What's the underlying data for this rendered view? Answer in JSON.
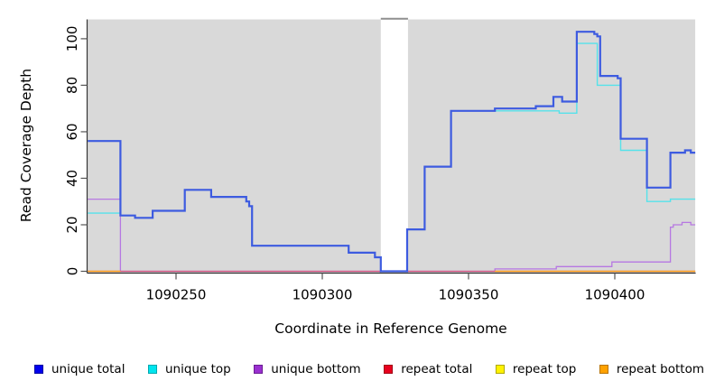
{
  "chart_data": {
    "type": "line",
    "subtype": "step-after-coverage-plot",
    "title": "",
    "xlabel": "Coordinate in Reference Genome",
    "ylabel": "Read Coverage Depth",
    "xlim": [
      1090219.8,
      1090427.5
    ],
    "ylim": [
      0,
      108
    ],
    "x_ticks": [
      "1090250",
      "1090300",
      "1090350",
      "1090400"
    ],
    "x_tick_values": [
      1090250,
      1090300,
      1090350,
      1090400
    ],
    "y_ticks": [
      "0",
      "20",
      "40",
      "60",
      "80",
      "100"
    ],
    "y_tick_values": [
      0,
      20,
      40,
      60,
      80,
      100
    ],
    "grid": "off",
    "panel_background": "#d9d9d9",
    "gap_region": {
      "start": 1090320,
      "end": 1090329.3,
      "fill": "#ffffff",
      "cap_color": "#8f8f8f"
    },
    "series": [
      {
        "name": "repeat top",
        "color": "#ffee00",
        "width": 1,
        "parts": [
          [
            [
              1090219.8,
              0
            ],
            [
              1090427.5,
              0
            ]
          ]
        ]
      },
      {
        "name": "unique bottom",
        "color": "#b678e2",
        "width": 1.3,
        "parts": [
          [
            [
              1090219.8,
              31
            ],
            [
              1090231,
              0
            ],
            [
              1090359,
              1
            ],
            [
              1090380,
              2
            ],
            [
              1090399,
              4
            ],
            [
              1090419,
              19
            ],
            [
              1090420,
              20
            ],
            [
              1090423,
              21
            ],
            [
              1090426,
              20
            ],
            [
              1090427.5,
              20
            ]
          ]
        ]
      },
      {
        "name": "repeat total",
        "color": "#d65480",
        "width": 1.3,
        "parts": [
          [
            [
              1090219.8,
              0
            ],
            [
              1090427.5,
              0
            ]
          ]
        ]
      },
      {
        "name": "repeat bottom",
        "color": "#ffa11e",
        "width": 1.6,
        "parts": [
          [
            [
              1090219.8,
              0
            ],
            [
              1090231,
              0
            ]
          ],
          [
            [
              1090359,
              0
            ],
            [
              1090427.5,
              0
            ]
          ]
        ]
      },
      {
        "name": "unique top",
        "color": "#55e2ea",
        "width": 1.4,
        "parts": [
          [
            [
              1090219.8,
              25
            ],
            [
              1090231,
              24
            ],
            [
              1090236,
              23
            ],
            [
              1090242,
              26
            ],
            [
              1090253,
              35
            ],
            [
              1090262,
              32
            ],
            [
              1090274,
              30
            ],
            [
              1090275,
              28
            ],
            [
              1090276,
              11
            ],
            [
              1090309,
              8
            ],
            [
              1090318,
              6
            ],
            [
              1090320,
              0
            ],
            [
              1090329,
              18
            ],
            [
              1090335,
              45
            ],
            [
              1090344,
              69
            ],
            [
              1090381,
              68
            ],
            [
              1090387,
              98
            ],
            [
              1090394,
              80
            ],
            [
              1090402,
              52
            ],
            [
              1090411,
              30
            ],
            [
              1090419,
              31
            ],
            [
              1090427.5,
              31
            ]
          ]
        ]
      },
      {
        "name": "unique total",
        "color": "#3d5be0",
        "width": 2.2,
        "parts": [
          [
            [
              1090219.8,
              56
            ],
            [
              1090231,
              24
            ],
            [
              1090236,
              23
            ],
            [
              1090242,
              26
            ],
            [
              1090253,
              35
            ],
            [
              1090262,
              32
            ],
            [
              1090274,
              30
            ],
            [
              1090275,
              28
            ],
            [
              1090276,
              11
            ],
            [
              1090309,
              8
            ],
            [
              1090318,
              6
            ],
            [
              1090320,
              0
            ],
            [
              1090329,
              18
            ],
            [
              1090335,
              45
            ],
            [
              1090344,
              69
            ],
            [
              1090359,
              70
            ],
            [
              1090373,
              71
            ],
            [
              1090379,
              75
            ],
            [
              1090382,
              73
            ],
            [
              1090387,
              103
            ],
            [
              1090393,
              102
            ],
            [
              1090394,
              101
            ],
            [
              1090395,
              84
            ],
            [
              1090401,
              83
            ],
            [
              1090402,
              57
            ],
            [
              1090411,
              36
            ],
            [
              1090419,
              51
            ],
            [
              1090424,
              52
            ],
            [
              1090426,
              51
            ],
            [
              1090427.5,
              51
            ]
          ]
        ]
      }
    ],
    "axis_color": "#333333",
    "tick_color": "#555555"
  },
  "legend": {
    "items": [
      {
        "label": "unique total",
        "fill": "#0000ee",
        "border": "#0000a0"
      },
      {
        "label": "unique top",
        "fill": "#00e5ee",
        "border": "#00a8b0"
      },
      {
        "label": "unique bottom",
        "fill": "#9a30d0",
        "border": "#6a1d92"
      },
      {
        "label": "repeat total",
        "fill": "#e8001e",
        "border": "#a00014"
      },
      {
        "label": "repeat top",
        "fill": "#fff200",
        "border": "#b0a800"
      },
      {
        "label": "repeat bottom",
        "fill": "#ffa200",
        "border": "#b87400"
      }
    ]
  }
}
